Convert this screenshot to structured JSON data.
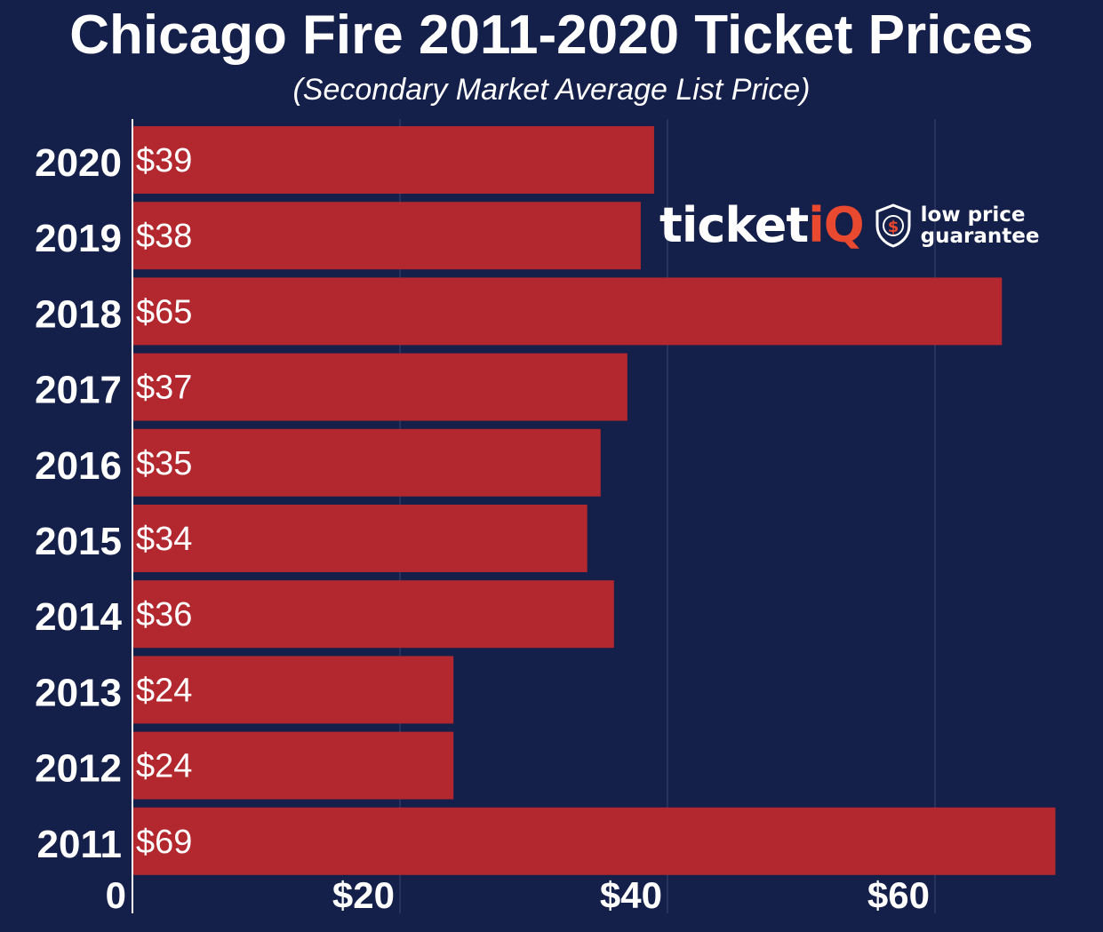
{
  "chart_data": {
    "type": "bar",
    "orientation": "horizontal",
    "title": "Chicago Fire 2011-2020 Ticket Prices",
    "subtitle": "(Secondary Market Average List Price)",
    "categories": [
      "2020",
      "2019",
      "2018",
      "2017",
      "2016",
      "2015",
      "2014",
      "2013",
      "2012",
      "2011"
    ],
    "values": [
      39,
      38,
      65,
      37,
      35,
      34,
      36,
      24,
      24,
      69
    ],
    "value_labels": [
      "$39",
      "$38",
      "$65",
      "$37",
      "$35",
      "$34",
      "$36",
      "$24",
      "$24",
      "$69"
    ],
    "x_ticks": [
      0,
      20,
      40,
      60
    ],
    "x_tick_labels": [
      "0",
      "$20",
      "$40",
      "$60"
    ],
    "xlim": [
      0,
      72
    ],
    "grid": "vertical",
    "xlabel": "",
    "ylabel": ""
  },
  "logo": {
    "brand_text_main": "ticket",
    "brand_text_accent": "iQ",
    "tagline_line1": "low price",
    "tagline_line2": "guarantee",
    "icon": "dollar-shield-icon"
  },
  "colors": {
    "background": "#141f4a",
    "bar": "#b3282e",
    "text": "#ffffff",
    "accent": "#e8492f",
    "grid": "#3b4570"
  }
}
